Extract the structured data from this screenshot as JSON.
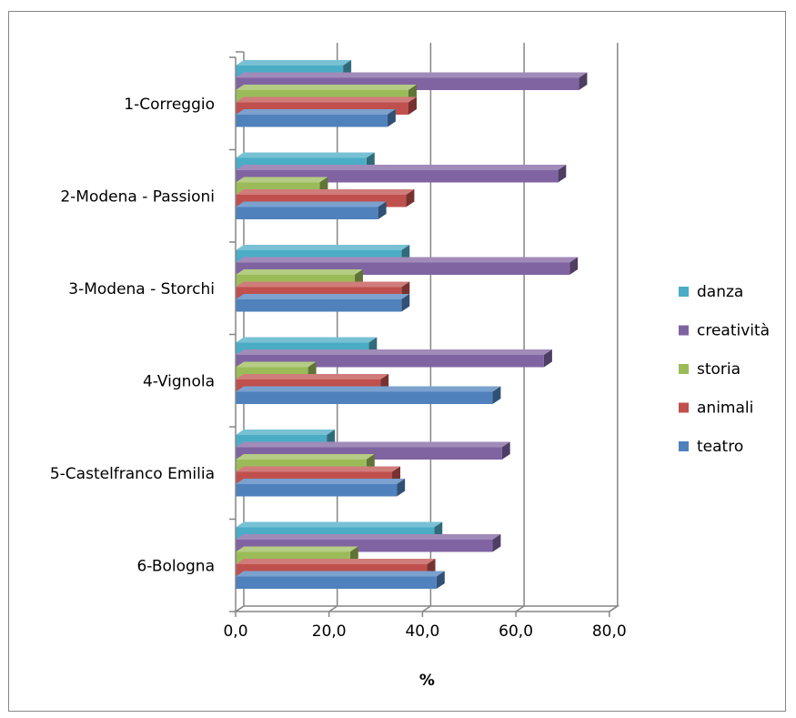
{
  "chart_data": {
    "type": "bar",
    "orientation": "horizontal",
    "three_d": true,
    "categories": [
      "1-Correggio",
      "2-Modena - Passioni",
      "3-Modena - Storchi",
      "4-Vignola",
      "5-Castelfranco Emilia",
      "6-Bologna"
    ],
    "series": [
      {
        "name": "danza",
        "color": "#4BACC6",
        "values": [
          23.0,
          28.0,
          35.5,
          28.5,
          19.5,
          42.5
        ]
      },
      {
        "name": "creatività",
        "color": "#8064A2",
        "values": [
          73.5,
          69.0,
          71.5,
          66.0,
          57.0,
          55.0
        ]
      },
      {
        "name": "storia",
        "color": "#9BBB59",
        "values": [
          37.0,
          18.0,
          25.5,
          15.5,
          28.0,
          24.5
        ]
      },
      {
        "name": "animali",
        "color": "#C0504D",
        "values": [
          37.0,
          36.5,
          35.5,
          31.0,
          33.5,
          41.0
        ]
      },
      {
        "name": "teatro",
        "color": "#4F81BD",
        "values": [
          32.5,
          30.5,
          35.5,
          55.0,
          34.5,
          43.0
        ]
      }
    ],
    "xlim": [
      0,
      80
    ],
    "xticks": [
      "0,0",
      "20,0",
      "40,0",
      "60,0",
      "80,0"
    ],
    "xlabel": "%",
    "ylabel": "",
    "title": "",
    "grid": true,
    "legend_position": "right",
    "legend_order": [
      "danza",
      "creatività",
      "storia",
      "animali",
      "teatro"
    ]
  }
}
